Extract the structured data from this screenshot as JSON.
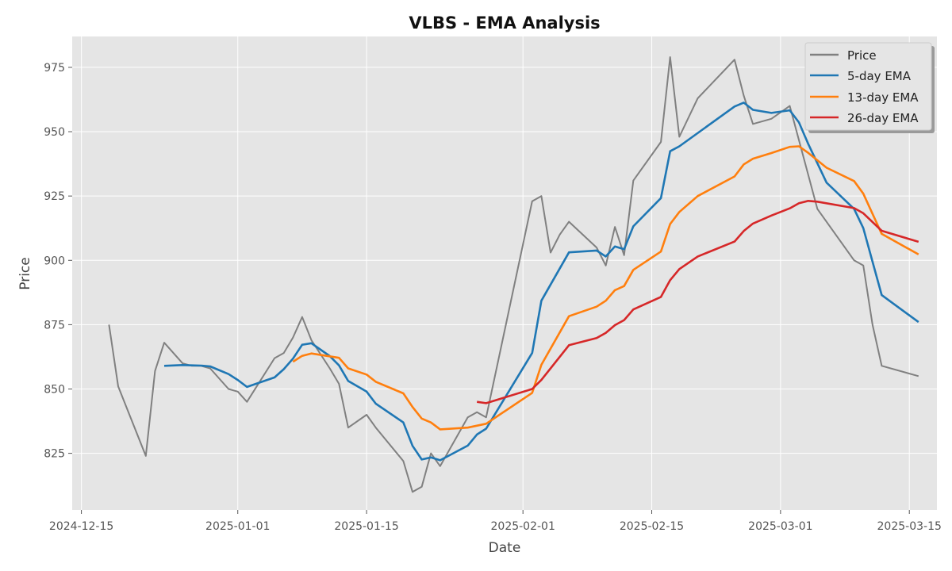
{
  "chart_data": {
    "type": "line",
    "title": "VLBS - EMA Analysis",
    "xlabel": "Date",
    "ylabel": "Price",
    "x_axis_type": "date",
    "xlim": [
      "2024-12-14",
      "2025-03-18"
    ],
    "ylim": [
      803,
      987
    ],
    "grid": true,
    "legend_position": "top-right",
    "x_ticks": [
      {
        "date": "2024-12-15",
        "label": "2024-12-15"
      },
      {
        "date": "2025-01-01",
        "label": "2025-01-01"
      },
      {
        "date": "2025-01-15",
        "label": "2025-01-15"
      },
      {
        "date": "2025-02-01",
        "label": "2025-02-01"
      },
      {
        "date": "2025-02-15",
        "label": "2025-02-15"
      },
      {
        "date": "2025-03-01",
        "label": "2025-03-01"
      },
      {
        "date": "2025-03-15",
        "label": "2025-03-15"
      }
    ],
    "y_ticks": [
      825,
      850,
      875,
      900,
      925,
      950,
      975
    ],
    "series": [
      {
        "name": "Price",
        "color": "#808080",
        "points": [
          [
            "2024-12-18",
            875
          ],
          [
            "2024-12-19",
            851
          ],
          [
            "2024-12-22",
            824
          ],
          [
            "2024-12-23",
            857
          ],
          [
            "2024-12-24",
            868
          ],
          [
            "2024-12-26",
            860
          ],
          [
            "2024-12-27",
            859
          ],
          [
            "2024-12-28",
            859
          ],
          [
            "2024-12-29",
            858
          ],
          [
            "2024-12-31",
            850
          ],
          [
            "2025-01-01",
            849
          ],
          [
            "2025-01-02",
            845
          ],
          [
            "2025-01-05",
            862
          ],
          [
            "2025-01-06",
            864
          ],
          [
            "2025-01-07",
            870
          ],
          [
            "2025-01-08",
            878
          ],
          [
            "2025-01-09",
            869
          ],
          [
            "2025-01-11",
            858
          ],
          [
            "2025-01-12",
            852
          ],
          [
            "2025-01-13",
            835
          ],
          [
            "2025-01-15",
            840
          ],
          [
            "2025-01-16",
            835
          ],
          [
            "2025-01-19",
            822
          ],
          [
            "2025-01-20",
            810
          ],
          [
            "2025-01-21",
            812
          ],
          [
            "2025-01-22",
            825
          ],
          [
            "2025-01-23",
            820
          ],
          [
            "2025-01-26",
            839
          ],
          [
            "2025-01-27",
            841
          ],
          [
            "2025-01-28",
            839
          ],
          [
            "2025-02-02",
            923
          ],
          [
            "2025-02-03",
            925
          ],
          [
            "2025-02-04",
            903
          ],
          [
            "2025-02-05",
            910
          ],
          [
            "2025-02-06",
            915
          ],
          [
            "2025-02-09",
            905
          ],
          [
            "2025-02-10",
            898
          ],
          [
            "2025-02-11",
            913
          ],
          [
            "2025-02-12",
            902
          ],
          [
            "2025-02-13",
            931
          ],
          [
            "2025-02-16",
            946
          ],
          [
            "2025-02-17",
            979
          ],
          [
            "2025-02-18",
            948
          ],
          [
            "2025-02-20",
            963
          ],
          [
            "2025-02-24",
            978
          ],
          [
            "2025-02-25",
            964
          ],
          [
            "2025-02-26",
            953
          ],
          [
            "2025-02-28",
            955
          ],
          [
            "2025-03-02",
            960
          ],
          [
            "2025-03-05",
            920
          ],
          [
            "2025-03-09",
            900
          ],
          [
            "2025-03-10",
            898
          ],
          [
            "2025-03-11",
            875
          ],
          [
            "2025-03-12",
            859
          ],
          [
            "2025-03-16",
            855
          ]
        ]
      },
      {
        "name": "5-day EMA",
        "color": "#1f77b4",
        "points": [
          [
            "2024-12-24",
            859
          ],
          [
            "2024-12-26",
            859.3
          ],
          [
            "2024-12-27",
            859.2
          ],
          [
            "2024-12-28",
            859.1
          ],
          [
            "2024-12-29",
            858.8
          ],
          [
            "2024-12-31",
            855.8
          ],
          [
            "2025-01-01",
            853.5
          ],
          [
            "2025-01-02",
            850.8
          ],
          [
            "2025-01-05",
            854.5
          ],
          [
            "2025-01-06",
            857.7
          ],
          [
            "2025-01-07",
            861.8
          ],
          [
            "2025-01-08",
            867.2
          ],
          [
            "2025-01-09",
            867.8
          ],
          [
            "2025-01-11",
            862.8
          ],
          [
            "2025-01-12",
            859.2
          ],
          [
            "2025-01-13",
            853.1
          ],
          [
            "2025-01-15",
            849.0
          ],
          [
            "2025-01-16",
            844.3
          ],
          [
            "2025-01-19",
            837.0
          ],
          [
            "2025-01-20",
            827.9
          ],
          [
            "2025-01-21",
            822.6
          ],
          [
            "2025-01-22",
            823.4
          ],
          [
            "2025-01-23",
            822.3
          ],
          [
            "2025-01-26",
            828.0
          ],
          [
            "2025-01-27",
            832.3
          ],
          [
            "2025-01-28",
            834.6
          ],
          [
            "2025-02-02",
            864.0
          ],
          [
            "2025-02-03",
            884.3
          ],
          [
            "2025-02-06",
            903.1
          ],
          [
            "2025-02-09",
            903.8
          ],
          [
            "2025-02-10",
            901.5
          ],
          [
            "2025-02-11",
            905.4
          ],
          [
            "2025-02-12",
            904.3
          ],
          [
            "2025-02-13",
            913.2
          ],
          [
            "2025-02-16",
            924.2
          ],
          [
            "2025-02-17",
            942.4
          ],
          [
            "2025-02-18",
            944.3
          ],
          [
            "2025-02-24",
            959.8
          ],
          [
            "2025-02-25",
            961.3
          ],
          [
            "2025-02-26",
            958.5
          ],
          [
            "2025-02-28",
            957.3
          ],
          [
            "2025-03-02",
            958.3
          ],
          [
            "2025-03-03",
            953.6
          ],
          [
            "2025-03-04",
            945.3
          ],
          [
            "2025-03-06",
            930.2
          ],
          [
            "2025-03-09",
            920.0
          ],
          [
            "2025-03-10",
            912.5
          ],
          [
            "2025-03-12",
            886.5
          ],
          [
            "2025-03-16",
            876.0
          ]
        ]
      },
      {
        "name": "13-day EMA",
        "color": "#ff7f0e",
        "points": [
          [
            "2025-01-07",
            860.6
          ],
          [
            "2025-01-08",
            862.9
          ],
          [
            "2025-01-09",
            863.8
          ],
          [
            "2025-01-12",
            862.1
          ],
          [
            "2025-01-13",
            858.0
          ],
          [
            "2025-01-15",
            855.6
          ],
          [
            "2025-01-16",
            852.8
          ],
          [
            "2025-01-19",
            848.3
          ],
          [
            "2025-01-20",
            843.0
          ],
          [
            "2025-01-21",
            838.5
          ],
          [
            "2025-01-22",
            837.0
          ],
          [
            "2025-01-23",
            834.3
          ],
          [
            "2025-01-26",
            835.0
          ],
          [
            "2025-01-28",
            836.5
          ],
          [
            "2025-02-02",
            848.5
          ],
          [
            "2025-02-03",
            859.4
          ],
          [
            "2025-02-06",
            878.3
          ],
          [
            "2025-02-09",
            882.0
          ],
          [
            "2025-02-10",
            884.3
          ],
          [
            "2025-02-11",
            888.4
          ],
          [
            "2025-02-12",
            890.0
          ],
          [
            "2025-02-13",
            896.3
          ],
          [
            "2025-02-16",
            903.4
          ],
          [
            "2025-02-17",
            914.1
          ],
          [
            "2025-02-18",
            918.8
          ],
          [
            "2025-02-20",
            925.0
          ],
          [
            "2025-02-24",
            932.6
          ],
          [
            "2025-02-25",
            937.3
          ],
          [
            "2025-02-26",
            939.5
          ],
          [
            "2025-02-28",
            941.7
          ],
          [
            "2025-03-02",
            944.1
          ],
          [
            "2025-03-03",
            944.3
          ],
          [
            "2025-03-04",
            941.8
          ],
          [
            "2025-03-06",
            936.0
          ],
          [
            "2025-03-09",
            930.8
          ],
          [
            "2025-03-10",
            925.9
          ],
          [
            "2025-03-12",
            910.3
          ],
          [
            "2025-03-16",
            902.3
          ]
        ]
      },
      {
        "name": "26-day EMA",
        "color": "#d62728",
        "points": [
          [
            "2025-01-27",
            845.0
          ],
          [
            "2025-01-28",
            844.5
          ],
          [
            "2025-02-02",
            850.0
          ],
          [
            "2025-02-03",
            853.5
          ],
          [
            "2025-02-06",
            867.0
          ],
          [
            "2025-02-09",
            869.8
          ],
          [
            "2025-02-10",
            871.8
          ],
          [
            "2025-02-11",
            874.8
          ],
          [
            "2025-02-12",
            876.8
          ],
          [
            "2025-02-13",
            880.9
          ],
          [
            "2025-02-16",
            885.8
          ],
          [
            "2025-02-17",
            892.3
          ],
          [
            "2025-02-18",
            896.6
          ],
          [
            "2025-02-20",
            901.5
          ],
          [
            "2025-02-24",
            907.3
          ],
          [
            "2025-02-25",
            911.4
          ],
          [
            "2025-02-26",
            914.3
          ],
          [
            "2025-02-28",
            917.4
          ],
          [
            "2025-03-02",
            920.2
          ],
          [
            "2025-03-03",
            922.2
          ],
          [
            "2025-03-04",
            923.1
          ],
          [
            "2025-03-05",
            922.8
          ],
          [
            "2025-03-09",
            920.3
          ],
          [
            "2025-03-10",
            918.3
          ],
          [
            "2025-03-12",
            911.5
          ],
          [
            "2025-03-16",
            907.2
          ]
        ]
      }
    ]
  }
}
